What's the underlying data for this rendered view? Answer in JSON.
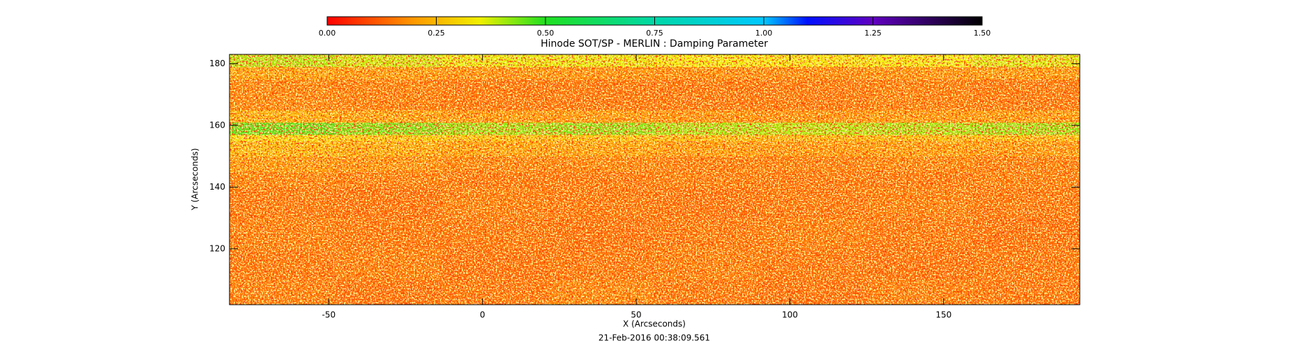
{
  "chart_data": {
    "type": "heatmap",
    "title": "Hinode SOT/SP - MERLIN : Damping Parameter",
    "x_label": "X (Arcseconds)",
    "y_label": "Y (Arcseconds)",
    "footnote": "21-Feb-2016 00:38:09.561",
    "xlim": [
      -82.3,
      194.3
    ],
    "ylim": [
      101.9,
      183
    ],
    "xticks": [
      -50,
      0,
      50,
      100,
      150
    ],
    "yticks": [
      120,
      140,
      160,
      180
    ],
    "x_edges": [
      -82.3,
      -47.7,
      -13.2,
      21.4,
      56,
      90.5,
      125.1,
      159.7,
      194.3
    ],
    "y_edges": [
      101.9,
      110,
      120,
      130,
      140,
      145,
      150,
      155,
      157,
      161,
      165,
      175,
      179,
      183
    ],
    "z": [
      [
        0.16,
        0.14,
        0.15,
        0.17,
        0.15,
        0.14,
        0.16,
        0.15
      ],
      [
        0.15,
        0.16,
        0.14,
        0.15,
        0.16,
        0.15,
        0.14,
        0.15
      ],
      [
        0.16,
        0.15,
        0.15,
        0.14,
        0.15,
        0.16,
        0.15,
        0.14
      ],
      [
        0.15,
        0.14,
        0.16,
        0.15,
        0.14,
        0.15,
        0.16,
        0.15
      ],
      [
        0.17,
        0.16,
        0.15,
        0.15,
        0.16,
        0.15,
        0.15,
        0.16
      ],
      [
        0.2,
        0.19,
        0.17,
        0.17,
        0.16,
        0.16,
        0.17,
        0.16
      ],
      [
        0.26,
        0.24,
        0.22,
        0.22,
        0.21,
        0.2,
        0.21,
        0.2
      ],
      [
        0.32,
        0.3,
        0.28,
        0.28,
        0.27,
        0.26,
        0.27,
        0.27
      ],
      [
        0.46,
        0.44,
        0.42,
        0.43,
        0.41,
        0.4,
        0.41,
        0.42
      ],
      [
        0.24,
        0.22,
        0.2,
        0.2,
        0.19,
        0.19,
        0.2,
        0.2
      ],
      [
        0.17,
        0.16,
        0.15,
        0.15,
        0.15,
        0.15,
        0.16,
        0.15
      ],
      [
        0.22,
        0.2,
        0.19,
        0.19,
        0.18,
        0.18,
        0.19,
        0.2
      ],
      [
        0.4,
        0.38,
        0.36,
        0.36,
        0.35,
        0.34,
        0.35,
        0.37
      ]
    ],
    "colorbar_lim": [
      0,
      1.5
    ],
    "colorbar_ticks": [
      {
        "value": 0,
        "label": "0.00"
      },
      {
        "value": 0.25,
        "label": "0.25"
      },
      {
        "value": 0.5,
        "label": "0.50"
      },
      {
        "value": 0.75,
        "label": "0.75"
      },
      {
        "value": 1,
        "label": "1.00"
      },
      {
        "value": 1.25,
        "label": "1.25"
      },
      {
        "value": 1.5,
        "label": "1.50"
      }
    ],
    "colorscale": [
      {
        "value": 0,
        "color": "#ff0000"
      },
      {
        "value": 0.2,
        "color": "#ff9a00"
      },
      {
        "value": 0.35,
        "color": "#f0f000"
      },
      {
        "value": 0.5,
        "color": "#20e020"
      },
      {
        "value": 0.75,
        "color": "#00d8a8"
      },
      {
        "value": 1,
        "color": "#00c8ff"
      },
      {
        "value": 1.1,
        "color": "#0010ff"
      },
      {
        "value": 1.25,
        "color": "#6000c0"
      },
      {
        "value": 1.5,
        "color": "#000000"
      }
    ]
  }
}
